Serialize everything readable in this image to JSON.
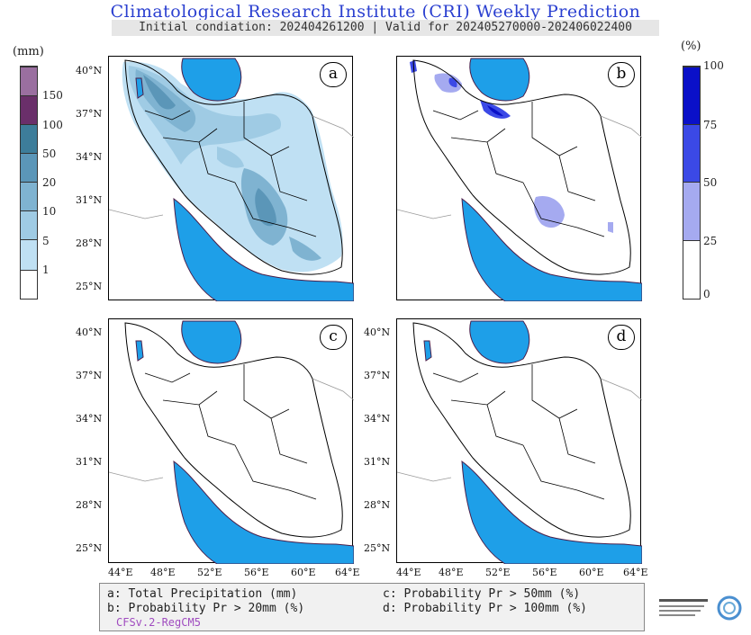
{
  "header": {
    "title": "Climatological Research Institute (CRI) Weekly Prediction",
    "subtitle": "Initial condiation: 202404261200 | Valid for 202405270000-202406022400"
  },
  "left_colorbar": {
    "unit": "(mm)",
    "labels": [
      "150",
      "100",
      "50",
      "20",
      "10",
      "5",
      "1"
    ],
    "colors": [
      "#9a6fa0",
      "#6a2f6a",
      "#3d7d9a",
      "#5b96b8",
      "#7fb3d1",
      "#a9d3ec",
      "#ffffff"
    ]
  },
  "right_colorbar": {
    "unit": "(%)",
    "labels": [
      "100",
      "75",
      "50",
      "25",
      "0"
    ],
    "colors": [
      "#0a10c8",
      "#3b49e6",
      "#a5aaf0",
      "#ffffff"
    ]
  },
  "panels": [
    {
      "label": "a",
      "description": "Total Precipitation (mm)"
    },
    {
      "label": "b",
      "description": "Probability Pr > 20mm (%)"
    },
    {
      "label": "c",
      "description": "Probability Pr > 50mm (%)"
    },
    {
      "label": "d",
      "description": "Probability Pr > 100mm (%)"
    }
  ],
  "axes": {
    "lat_labels": [
      "40°N",
      "37°N",
      "34°N",
      "31°N",
      "28°N",
      "25°N"
    ],
    "lon_labels": [
      "44°E",
      "48°E",
      "52°E",
      "56°E",
      "60°E",
      "64°E"
    ]
  },
  "legend": {
    "a": "a: Total Precipitation (mm)",
    "b": "b: Probability Pr > 20mm (%)",
    "c": "c: Probability Pr > 50mm (%)",
    "d": "d: Probability Pr > 100mm (%)",
    "model": "CFSv.2-RegCM5"
  },
  "colors": {
    "title": "#2a3fd0",
    "water": "#1e9fe8",
    "model_text": "#a04cc0"
  }
}
